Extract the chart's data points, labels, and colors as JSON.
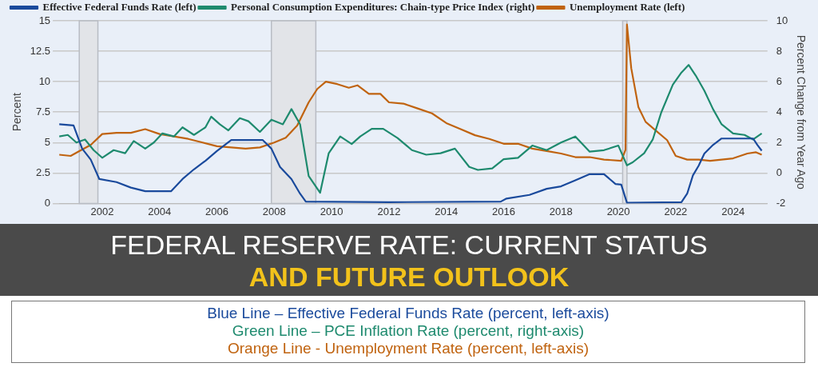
{
  "chart_data": {
    "type": "line",
    "title": "FEDERAL RESERVE RATE: CURRENT STATUS",
    "subtitle": "AND FUTURE OUTLOOK",
    "ylabel": "Percent",
    "y2label": "Percent Change from Year Ago",
    "xlim": [
      2000.5,
      2025.2
    ],
    "xticks": [
      2002,
      2004,
      2006,
      2008,
      2010,
      2012,
      2014,
      2016,
      2018,
      2020,
      2022,
      2024
    ],
    "ylim": [
      0,
      15
    ],
    "yticks": [
      0,
      2.5,
      5,
      7.5,
      10,
      12.5,
      15
    ],
    "y2lim": [
      -2,
      10
    ],
    "y2ticks": [
      -2,
      0,
      2,
      4,
      6,
      8,
      10
    ],
    "grid": "y",
    "legend": "top left",
    "marker": "none",
    "line_style": "solid",
    "bands": [
      {
        "axis": "x",
        "from": 2001.2,
        "to": 2001.85,
        "color": "#e2e4e8"
      },
      {
        "axis": "x",
        "from": 2007.9,
        "to": 2009.45,
        "color": "#e2e4e8"
      },
      {
        "axis": "x",
        "from": 2020.15,
        "to": 2020.3,
        "color": "#e2e4e8"
      }
    ],
    "series": [
      {
        "name": "Effective Federal Funds Rate (left)",
        "color": "#1a4a9c",
        "x": [
          2000.5,
          2001.0,
          2001.3,
          2001.6,
          2001.9,
          2002.5,
          2003.0,
          2003.5,
          2004.4,
          2004.8,
          2005.2,
          2005.6,
          2006.0,
          2006.5,
          2007.6,
          2007.9,
          2008.2,
          2008.6,
          2008.9,
          2009.1,
          2012.0,
          2015.9,
          2016.1,
          2016.9,
          2017.5,
          2018.0,
          2018.5,
          2019.0,
          2019.5,
          2019.9,
          2020.1,
          2020.3,
          2022.2,
          2022.4,
          2022.6,
          2022.8,
          2023.0,
          2023.3,
          2023.6,
          2024.7,
          2024.85,
          2025.0
        ],
        "values": [
          6.5,
          6.4,
          4.5,
          3.6,
          2.0,
          1.75,
          1.3,
          1.0,
          1.0,
          2.0,
          2.8,
          3.5,
          4.3,
          5.2,
          5.2,
          4.5,
          3.0,
          2.0,
          0.8,
          0.15,
          0.1,
          0.15,
          0.4,
          0.7,
          1.2,
          1.4,
          1.9,
          2.4,
          2.4,
          1.6,
          1.55,
          0.05,
          0.1,
          0.8,
          2.3,
          3.1,
          4.1,
          4.8,
          5.33,
          5.33,
          4.8,
          4.33
        ]
      },
      {
        "name": "Personal Consumption Expenditures: Chain-type Price Index (right)",
        "color": "#1e8a6e",
        "axis": "y2",
        "x": [
          2000.5,
          2000.8,
          2001.1,
          2001.4,
          2001.7,
          2002.0,
          2002.4,
          2002.8,
          2003.1,
          2003.5,
          2003.8,
          2004.1,
          2004.5,
          2004.8,
          2005.2,
          2005.6,
          2005.8,
          2006.1,
          2006.4,
          2006.8,
          2007.1,
          2007.5,
          2007.9,
          2008.3,
          2008.6,
          2008.9,
          2009.2,
          2009.6,
          2009.9,
          2010.3,
          2010.7,
          2011.0,
          2011.4,
          2011.8,
          2012.3,
          2012.8,
          2013.3,
          2013.8,
          2014.3,
          2014.8,
          2015.1,
          2015.6,
          2016.0,
          2016.5,
          2017.0,
          2017.5,
          2018.0,
          2018.5,
          2019.0,
          2019.5,
          2020.0,
          2020.3,
          2020.5,
          2020.9,
          2021.2,
          2021.5,
          2021.9,
          2022.2,
          2022.45,
          2022.7,
          2023.0,
          2023.3,
          2023.6,
          2024.0,
          2024.4,
          2024.7,
          2025.0
        ],
        "values": [
          2.4,
          2.5,
          2.0,
          2.2,
          1.5,
          1.0,
          1.5,
          1.3,
          2.1,
          1.6,
          2.0,
          2.6,
          2.4,
          3.0,
          2.5,
          3.0,
          3.7,
          3.2,
          2.8,
          3.6,
          3.4,
          2.7,
          3.5,
          3.2,
          4.2,
          3.2,
          -0.2,
          -1.3,
          1.3,
          2.4,
          1.9,
          2.4,
          2.9,
          2.9,
          2.3,
          1.5,
          1.2,
          1.3,
          1.6,
          0.4,
          0.2,
          0.3,
          0.9,
          1.0,
          1.8,
          1.5,
          2.0,
          2.4,
          1.4,
          1.5,
          1.8,
          0.5,
          0.7,
          1.3,
          2.2,
          4.0,
          5.8,
          6.6,
          7.1,
          6.4,
          5.4,
          4.2,
          3.2,
          2.6,
          2.5,
          2.2,
          2.6
        ]
      },
      {
        "name": "Unemployment Rate (left)",
        "color": "#c0630f",
        "x": [
          2000.5,
          2000.9,
          2001.2,
          2001.6,
          2002.0,
          2002.5,
          2003.0,
          2003.5,
          2004.0,
          2004.5,
          2005.0,
          2005.5,
          2006.0,
          2006.5,
          2007.0,
          2007.5,
          2008.0,
          2008.4,
          2008.8,
          2009.2,
          2009.5,
          2009.8,
          2010.2,
          2010.6,
          2010.9,
          2011.3,
          2011.7,
          2012.0,
          2012.5,
          2013.0,
          2013.5,
          2014.0,
          2014.5,
          2015.0,
          2015.5,
          2016.0,
          2016.5,
          2017.0,
          2017.5,
          2018.0,
          2018.5,
          2019.0,
          2019.5,
          2020.1,
          2020.25,
          2020.3,
          2020.45,
          2020.7,
          2020.95,
          2021.3,
          2021.7,
          2022.0,
          2022.4,
          2022.8,
          2023.2,
          2023.6,
          2024.0,
          2024.5,
          2024.8,
          2025.0
        ],
        "values": [
          4.0,
          3.9,
          4.3,
          4.8,
          5.7,
          5.8,
          5.8,
          6.1,
          5.7,
          5.5,
          5.3,
          5.0,
          4.7,
          4.6,
          4.5,
          4.6,
          5.0,
          5.4,
          6.4,
          8.3,
          9.4,
          10.0,
          9.8,
          9.5,
          9.7,
          9.0,
          9.0,
          8.3,
          8.2,
          7.8,
          7.4,
          6.6,
          6.1,
          5.6,
          5.3,
          4.9,
          4.9,
          4.5,
          4.3,
          4.1,
          3.8,
          3.8,
          3.6,
          3.5,
          4.4,
          14.7,
          11.1,
          7.9,
          6.7,
          6.0,
          5.2,
          3.9,
          3.6,
          3.6,
          3.5,
          3.6,
          3.7,
          4.1,
          4.2,
          4.0
        ]
      }
    ],
    "annotations": [
      "Blue Line – Effective Federal Funds Rate (percent, left-axis)",
      "Green Line – PCE Inflation Rate (percent, right-axis)",
      "Orange Line - Unemployment Rate (percent, left-axis)"
    ]
  }
}
